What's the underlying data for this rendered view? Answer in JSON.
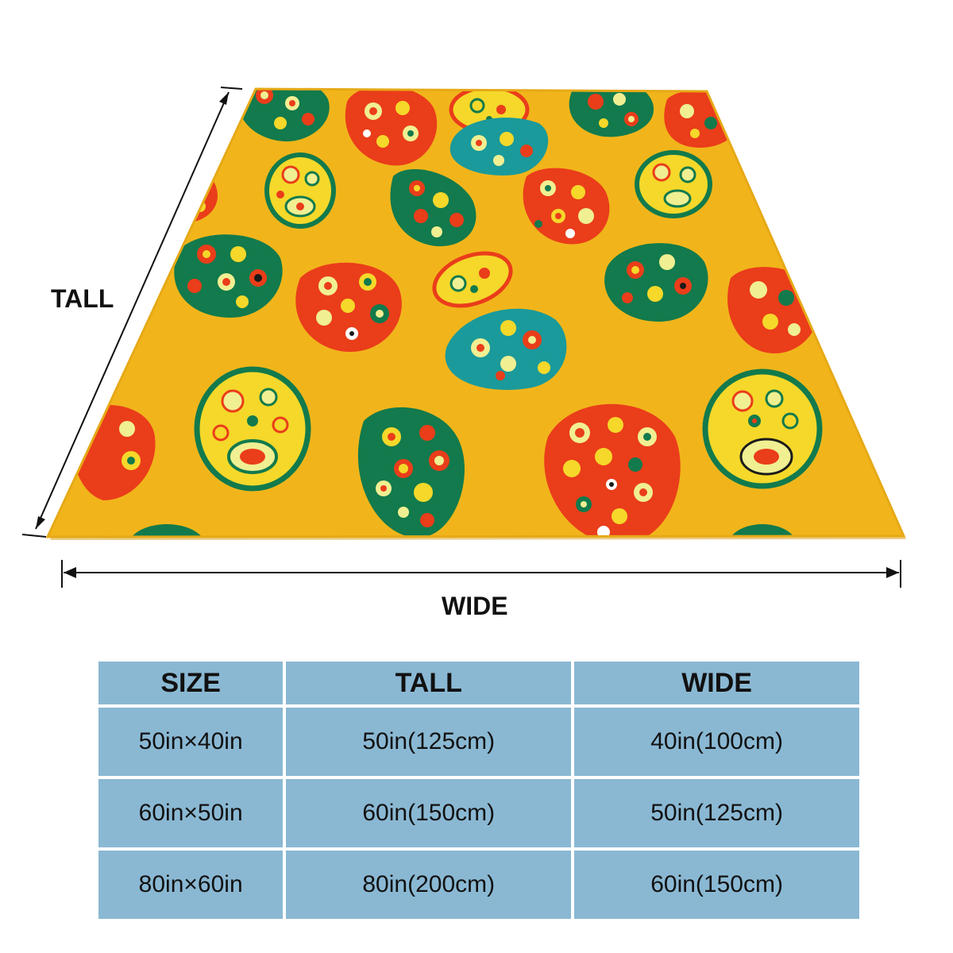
{
  "dimensions": {
    "tall_label": "TALL",
    "wide_label": "WIDE"
  },
  "colors": {
    "background": "#f1b51b",
    "green": "#127a4c",
    "red": "#ea3d1a",
    "teal": "#1a9a9b",
    "cream": "#f0ef92",
    "table_cell": "#8ab8d3"
  },
  "table": {
    "headers": [
      "SIZE",
      "TALL",
      "WIDE"
    ],
    "rows": [
      [
        "50in×40in",
        "50in(125cm)",
        "40in(100cm)"
      ],
      [
        "60in×50in",
        "60in(150cm)",
        "50in(125cm)"
      ],
      [
        "80in×60in",
        "80in(200cm)",
        "60in(150cm)"
      ]
    ]
  }
}
